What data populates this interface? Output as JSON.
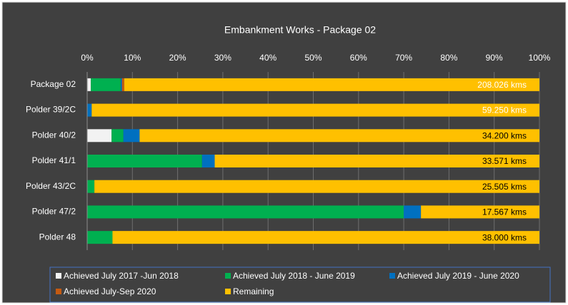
{
  "chart_data": {
    "type": "stacked_barh",
    "title": "Embankment Works - Package 02",
    "categories": [
      "Package 02",
      "Polder 39/2C",
      "Polder 40/2",
      "Polder 41/1",
      "Polder 43/2C",
      "Polder 47/2",
      "Polder 48"
    ],
    "series": [
      {
        "name": "Achieved July 2017 -Jun 2018",
        "color": "#f2f2f2",
        "values": [
          0.8,
          0,
          5.4,
          0,
          0,
          0,
          0
        ]
      },
      {
        "name": "Achieved  July 2018 - June 2019",
        "color": "#00b050",
        "values": [
          6.6,
          0,
          2.6,
          25.4,
          1.6,
          70.0,
          5.6
        ]
      },
      {
        "name": "Achieved  July 2019 - June 2020",
        "color": "#0070c0",
        "values": [
          0.3,
          1.0,
          3.6,
          2.8,
          0,
          3.8,
          0
        ]
      },
      {
        "name": "Achieved  July-Sep 2020",
        "color": "#c55a11",
        "values": [
          0.5,
          0,
          0,
          0,
          0,
          0,
          0
        ]
      },
      {
        "name": "Remaining",
        "color": "#ffc000",
        "values": [
          91.8,
          99.0,
          88.4,
          71.8,
          98.4,
          26.2,
          94.4
        ]
      }
    ],
    "annotations": [
      "208.026 kms",
      "59.250 kms",
      "34.200 kms",
      "33.571 kms",
      "25.505 kms",
      "17.567 kms",
      "38.000 kms"
    ],
    "annotation_colors": [
      "#ffffff",
      "#ffffff",
      "#000000",
      "#000000",
      "#000000",
      "#000000",
      "#000000"
    ],
    "xlim": [
      0,
      100
    ],
    "xticks": [
      {
        "value": 0,
        "label": "0%"
      },
      {
        "value": 10,
        "label": "10%"
      },
      {
        "value": 20,
        "label": "20%"
      },
      {
        "value": 30,
        "label": "30%"
      },
      {
        "value": 40,
        "label": "40%"
      },
      {
        "value": 50,
        "label": "50%"
      },
      {
        "value": 60,
        "label": "60%"
      },
      {
        "value": 70,
        "label": "70%"
      },
      {
        "value": 80,
        "label": "80%"
      },
      {
        "value": 90,
        "label": "90%"
      },
      {
        "value": 100,
        "label": "100%"
      }
    ],
    "grid": true,
    "legend": "bottom"
  }
}
